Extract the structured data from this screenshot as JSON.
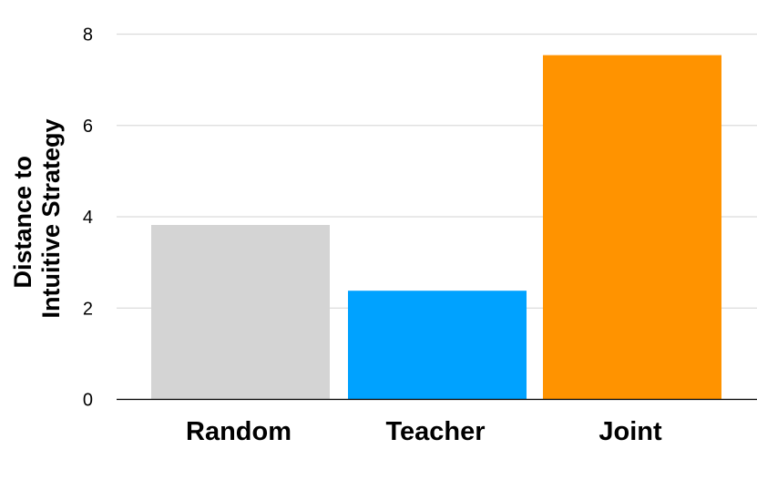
{
  "chart_data": {
    "type": "bar",
    "title": "",
    "xlabel": "",
    "ylabel": [
      "Distance to",
      "Intuitive Strategy"
    ],
    "categories": [
      "Random",
      "Teacher",
      "Joint"
    ],
    "values": [
      3.82,
      2.38,
      7.54
    ],
    "colors": [
      "#d4d4d4",
      "#00a2ff",
      "#ff9300"
    ],
    "ylim": [
      0,
      8
    ],
    "yticks": [
      "0",
      "2",
      "4",
      "6",
      "8"
    ],
    "grid": true,
    "legend": "none"
  }
}
